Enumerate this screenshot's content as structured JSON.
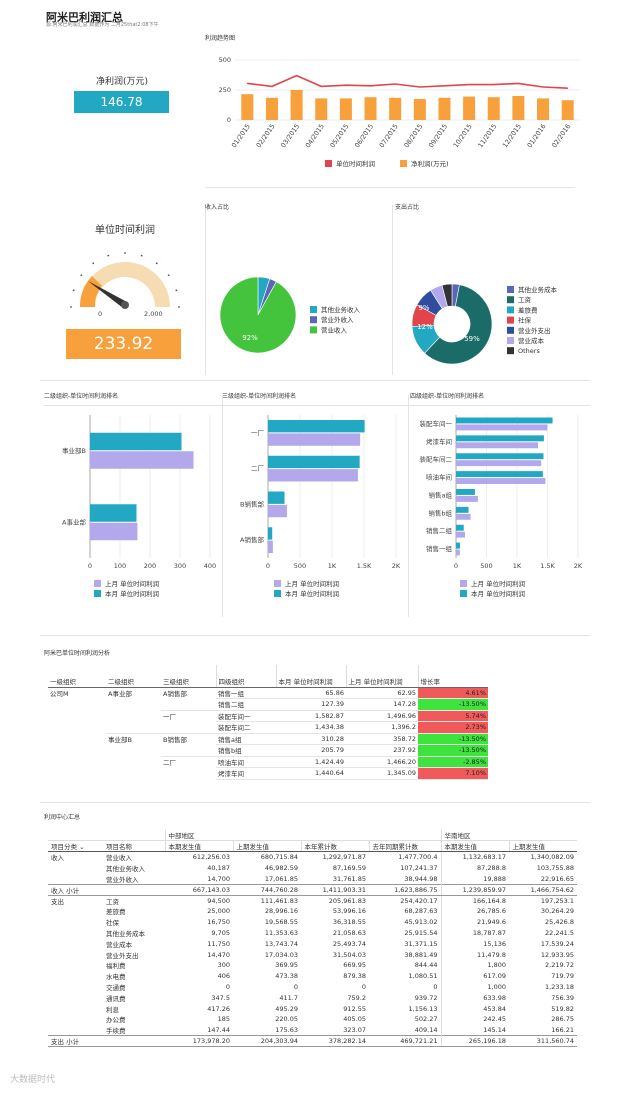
{
  "header": {
    "title": "阿米巴利润汇总",
    "subtitle": "源:阿米巴利润汇总 数据作为 二月25that2:08下午"
  },
  "kpi1": {
    "label": "净利润(万元)",
    "value": "146.78"
  },
  "kpi2": {
    "label": "单位时间利润",
    "value": "233.92",
    "gauge_min": "0",
    "gauge_max": "2,000"
  },
  "colors": {
    "orange": "#f7a03c",
    "red": "#e0454b",
    "teal": "#23a8c4",
    "lavender": "#b3a8ec",
    "green": "#43c43c",
    "navy": "#5a66b8"
  },
  "sections": {
    "trend": "利润趋势图",
    "income": "收入占比",
    "expense": "支出占比",
    "rank2": "二级组织-单位时间利润排名",
    "rank3": "三级组织-单位时间利润排名",
    "rank4": "四级组织-单位时间利润排名",
    "analysis": "阿米巴单位时间利润分析",
    "center": "利润中心汇总"
  },
  "chart_data": [
    {
      "type": "line",
      "title": "利润趋势图",
      "categories": [
        "01/2015",
        "02/2015",
        "03/2015",
        "04/2015",
        "05/2015",
        "06/2015",
        "07/2015",
        "08/2015",
        "09/2015",
        "10/2015",
        "11/2015",
        "12/2015",
        "01/2016",
        "02/2016"
      ],
      "ylim": [
        0,
        500
      ],
      "yticks": [
        "0",
        "250",
        "500"
      ],
      "series": [
        {
          "name": "单位时间利润",
          "kind": "line",
          "color": "#e0454b",
          "values": [
            305,
            280,
            370,
            280,
            290,
            285,
            300,
            275,
            285,
            295,
            295,
            305,
            275,
            265
          ]
        },
        {
          "name": "净利润(万元)",
          "kind": "bar",
          "color": "#f7a03c",
          "values": [
            215,
            185,
            250,
            180,
            180,
            190,
            185,
            175,
            185,
            195,
            190,
            200,
            180,
            165
          ]
        }
      ]
    },
    {
      "type": "pie",
      "title": "收入占比",
      "slices": [
        {
          "name": "其他业务收入",
          "value": 5,
          "color": "#23a8c4"
        },
        {
          "name": "营业外收入",
          "value": 3,
          "color": "#5a66b8"
        },
        {
          "name": "营业收入",
          "value": 92,
          "color": "#43c43c"
        }
      ],
      "labels": [
        "92%"
      ]
    },
    {
      "type": "pie",
      "title": "支出占比",
      "slices": [
        {
          "name": "其他业务成本",
          "value": 3,
          "color": "#5a66b8"
        },
        {
          "name": "工资",
          "value": 59,
          "color": "#1b6b68"
        },
        {
          "name": "差旅费",
          "value": 12,
          "color": "#23a8c4"
        },
        {
          "name": "社保",
          "value": 9,
          "color": "#e0454b"
        },
        {
          "name": "营业外支出",
          "value": 8,
          "color": "#2e4d9e"
        },
        {
          "name": "营业成本",
          "value": 5,
          "color": "#b3a8ec"
        },
        {
          "name": "Others",
          "value": 4,
          "color": "#333333"
        }
      ],
      "labels": [
        "59%",
        "12%",
        "9%"
      ]
    },
    {
      "type": "bar",
      "orientation": "horizontal",
      "title": "二级组织-单位时间利润排名",
      "categories": [
        "事业部B",
        "A事业部"
      ],
      "xlim": [
        0,
        400
      ],
      "xticks": [
        "0",
        "100",
        "200",
        "300",
        "400"
      ],
      "series": [
        {
          "name": "上月 单位时间利润",
          "color": "#b3a8ec",
          "values": [
            345,
            158
          ]
        },
        {
          "name": "本月 单位时间利润",
          "color": "#23a8c4",
          "values": [
            305,
            155
          ]
        }
      ]
    },
    {
      "type": "bar",
      "orientation": "horizontal",
      "title": "三级组织-单位时间利润排名",
      "categories": [
        "一厂",
        "二厂",
        "B销售部",
        "A销售部"
      ],
      "xlim": [
        0,
        2000
      ],
      "xticks": [
        "0",
        "500",
        "1K",
        "1.5K",
        "2K"
      ],
      "series": [
        {
          "name": "上月 单位时间利润",
          "color": "#b3a8ec",
          "values": [
            1440,
            1405,
            296,
            76
          ]
        },
        {
          "name": "本月 单位时间利润",
          "color": "#23a8c4",
          "values": [
            1510,
            1432,
            258,
            66
          ]
        }
      ]
    },
    {
      "type": "bar",
      "orientation": "horizontal",
      "title": "四级组织-单位时间利润排名",
      "categories": [
        "装配车间一",
        "烤漆车间",
        "装配车间二",
        "喷油车间",
        "销售a组",
        "销售b组",
        "销售二组",
        "销售一组"
      ],
      "xlim": [
        0,
        2000
      ],
      "xticks": [
        "0",
        "500",
        "1K",
        "1.5K",
        "2K"
      ],
      "series": [
        {
          "name": "上月 单位时间利润",
          "color": "#b3a8ec",
          "values": [
            1497,
            1345,
            1396,
            1466,
            359,
            238,
            147,
            63
          ]
        },
        {
          "name": "本月 单位时间利润",
          "color": "#23a8c4",
          "values": [
            1583,
            1441,
            1434,
            1424,
            310,
            206,
            127,
            66
          ]
        }
      ]
    }
  ],
  "table1": {
    "headers": [
      "一级组织",
      "二级组织",
      "三级组织",
      "四级组织",
      "本月 单位时间利润",
      "上月 单位时间利润",
      "增长率"
    ],
    "rows": [
      [
        "公司M",
        "A事业部",
        "A销售部",
        "销售一组",
        "65.86",
        "62.95",
        "4.61%"
      ],
      [
        "",
        "",
        "",
        "销售二组",
        "127.39",
        "147.28",
        "-13.50%"
      ],
      [
        "",
        "",
        "一厂",
        "装配车间一",
        "1,582.87",
        "1,496.96",
        "5.74%"
      ],
      [
        "",
        "",
        "",
        "装配车间二",
        "1,434.38",
        "1,396.2",
        "2.73%"
      ],
      [
        "",
        "事业部B",
        "B销售部",
        "销售a组",
        "310.28",
        "358.72",
        "-13.50%"
      ],
      [
        "",
        "",
        "",
        "销售b组",
        "205.79",
        "237.92",
        "-13.50%"
      ],
      [
        "",
        "",
        "二厂",
        "喷油车间",
        "1,424.49",
        "1,466.20",
        "-2.85%"
      ],
      [
        "",
        "",
        "",
        "烤漆车间",
        "1,440.64",
        "1,345.09",
        "7.10%"
      ]
    ]
  },
  "table2": {
    "region1": "中部地区",
    "region2": "华南地区",
    "headers": [
      "项目分类",
      "项目名称",
      "本期发生值",
      "上期发生值",
      "本年累计数",
      "去年同期累计数",
      "本期发生值",
      "上期发生值"
    ],
    "rows": [
      [
        "收入",
        "营业收入",
        "612,256.03",
        "680,715.84",
        "1,292,971.87",
        "1,477,700.4",
        "1,132,683.17",
        "1,340,082.09"
      ],
      [
        "",
        "其他业务收入",
        "40,187",
        "46,982.59",
        "87,169.59",
        "107,241.37",
        "87,288.8",
        "103,755.88"
      ],
      [
        "",
        "营业外收入",
        "14,700",
        "17,061.85",
        "31,761.85",
        "38,944.98",
        "19,888",
        "22,916.65"
      ],
      [
        "收入 小计",
        "",
        "667,143.03",
        "744,760.28",
        "1,411,903.31",
        "1,623,886.75",
        "1,239,859.97",
        "1,466,754.62"
      ],
      [
        "支出",
        "工资",
        "94,500",
        "111,461.83",
        "205,961.83",
        "254,420.17",
        "166,164.8",
        "197,253.1"
      ],
      [
        "",
        "差旅费",
        "25,000",
        "28,996.16",
        "53,996.16",
        "68,287.63",
        "26,785.6",
        "30,264.29"
      ],
      [
        "",
        "社保",
        "16,750",
        "19,568.55",
        "36,318.55",
        "45,913.02",
        "21,949.6",
        "25,426.8"
      ],
      [
        "",
        "其他业务成本",
        "9,705",
        "11,353.63",
        "21,058.63",
        "25,915.54",
        "18,787.87",
        "22,241.5"
      ],
      [
        "",
        "营业成本",
        "11,750",
        "13,743.74",
        "25,493.74",
        "31,371.15",
        "15,136",
        "17,539.24"
      ],
      [
        "",
        "营业外支出",
        "14,470",
        "17,034.03",
        "31,504.03",
        "38,881.49",
        "11,479.8",
        "12,933.95"
      ],
      [
        "",
        "福利费",
        "300",
        "369.95",
        "669.95",
        "844.44",
        "1,800",
        "2,219.72"
      ],
      [
        "",
        "水电费",
        "406",
        "473.38",
        "879.38",
        "1,080.51",
        "617.09",
        "719.79"
      ],
      [
        "",
        "交通费",
        "0",
        "0",
        "0",
        "0",
        "1,000",
        "1,233.18"
      ],
      [
        "",
        "通讯费",
        "347.5",
        "411.7",
        "759.2",
        "939.72",
        "633.98",
        "756.39"
      ],
      [
        "",
        "利息",
        "417.26",
        "495.29",
        "912.55",
        "1,156.13",
        "453.84",
        "519.82"
      ],
      [
        "",
        "办公费",
        "185",
        "220.05",
        "405.05",
        "502.27",
        "242.45",
        "286.75"
      ],
      [
        "",
        "手续费",
        "147.44",
        "175.63",
        "323.07",
        "409.14",
        "145.14",
        "166.21"
      ],
      [
        "支出 小计",
        "",
        "173,978.20",
        "204,303.94",
        "378,282.14",
        "469,721.21",
        "265,196.18",
        "311,560.74"
      ]
    ]
  },
  "watermark": "大数据时代"
}
